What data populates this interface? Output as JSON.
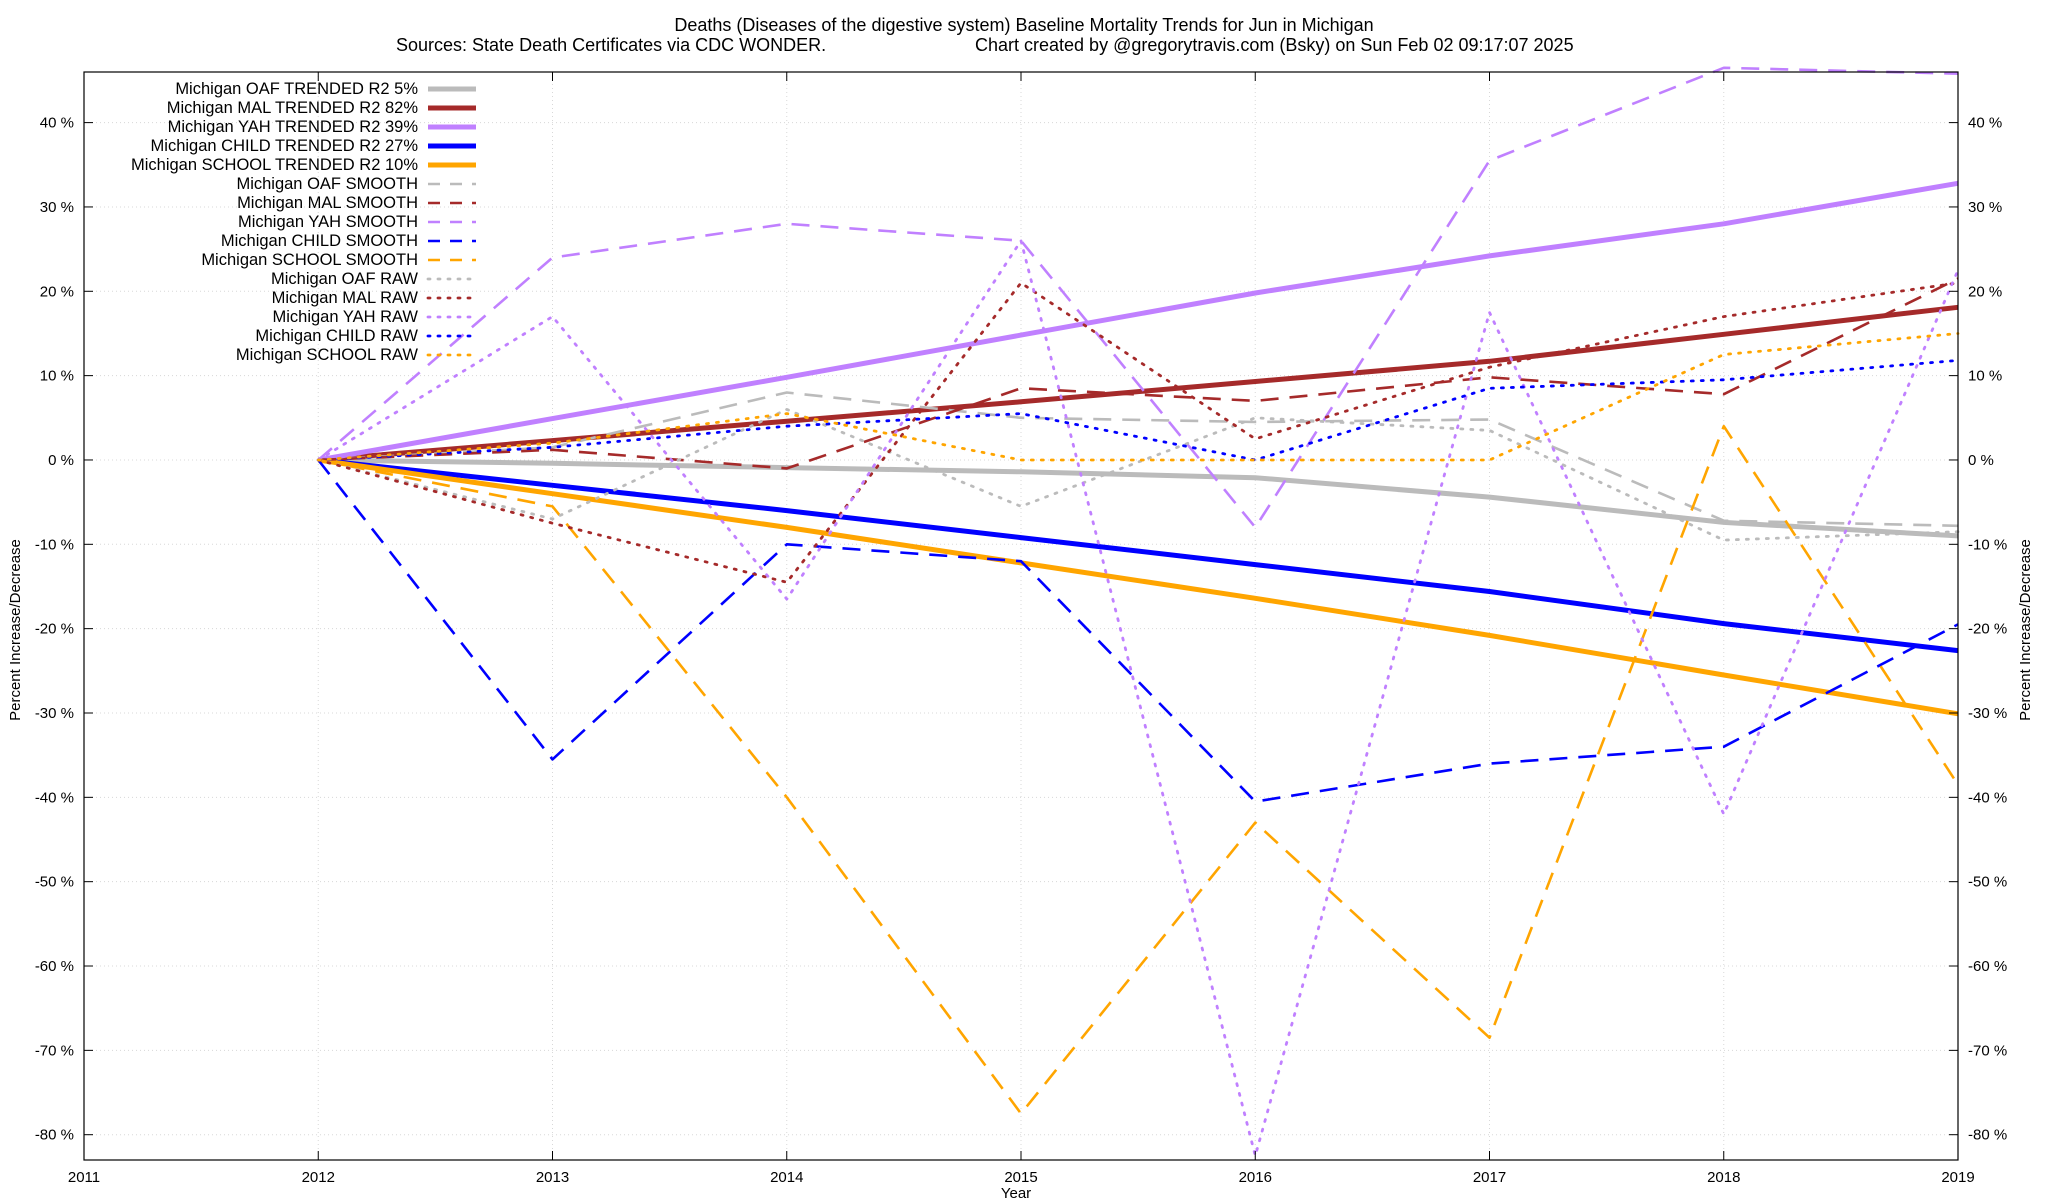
{
  "chart_data": {
    "type": "line",
    "title_line1": "Deaths (Diseases of the digestive system)  Baseline Mortality Trends for Jun in Michigan",
    "title_line2_left": "Sources: State Death Certificates via CDC WONDER.",
    "title_line2_right": "Chart created by @gregorytravis.com (Bsky) on Sun Feb 02 09:17:07 2025",
    "xlabel": "Year",
    "ylabel_left": "Percent Increase/Decrease",
    "ylabel_right": "Percent Increase/Decrease",
    "xlim": [
      2011,
      2019
    ],
    "ylim": [
      -83,
      46
    ],
    "grid": true,
    "legend_position": "top-left",
    "x_ticks": [
      "2011",
      "2012",
      "2013",
      "2014",
      "2015",
      "2016",
      "2017",
      "2018",
      "2019"
    ],
    "y_ticks": [
      "40 %",
      "30 %",
      "20 %",
      "10 %",
      "0 %",
      "-10 %",
      "-20 %",
      "-30 %",
      "-40 %",
      "-50 %",
      "-60 %",
      "-70 %",
      "-80 %"
    ],
    "y_tick_values": [
      40,
      30,
      20,
      10,
      0,
      -10,
      -20,
      -30,
      -40,
      -50,
      -60,
      -70,
      -80
    ],
    "x": [
      2012,
      2013,
      2014,
      2015,
      2016,
      2017,
      2018,
      2019
    ],
    "series": [
      {
        "name": "Michigan OAF TRENDED R2  5%",
        "style": "solid",
        "color": "#bbbbbb",
        "values": [
          0,
          -0.4,
          -0.9,
          -1.4,
          -2.1,
          -4.4,
          -7.4,
          -9.0
        ]
      },
      {
        "name": "Michigan MAL TRENDED R2  82%",
        "style": "solid",
        "color": "#a52a2a",
        "values": [
          0,
          2.3,
          4.6,
          6.9,
          9.3,
          11.7,
          14.9,
          18.1
        ]
      },
      {
        "name": "Michigan YAH TRENDED R2  39%",
        "style": "solid",
        "color": "#c080ff",
        "values": [
          0,
          4.9,
          9.8,
          14.8,
          19.8,
          24.2,
          28.0,
          32.8
        ]
      },
      {
        "name": "Michigan CHILD TRENDED R2  27%",
        "style": "solid",
        "color": "#0000ff",
        "values": [
          0,
          -3.0,
          -6.0,
          -9.2,
          -12.4,
          -15.6,
          -19.4,
          -22.6
        ]
      },
      {
        "name": "Michigan SCHOOL TRENDED R2  10%",
        "style": "solid",
        "color": "#ffa500",
        "values": [
          0,
          -4.0,
          -8.0,
          -12.2,
          -16.4,
          -20.8,
          -25.5,
          -30.1
        ]
      },
      {
        "name": "Michigan OAF SMOOTH",
        "style": "dashed",
        "color": "#bbbbbb",
        "values": [
          0,
          1.5,
          8.0,
          5.0,
          4.5,
          4.8,
          -7.2,
          -7.8
        ]
      },
      {
        "name": "Michigan MAL SMOOTH",
        "style": "dashed",
        "color": "#a52a2a",
        "values": [
          0,
          1.2,
          -1.0,
          8.5,
          7.0,
          9.8,
          7.8,
          21.5
        ]
      },
      {
        "name": "Michigan YAH SMOOTH",
        "style": "dashed",
        "color": "#c080ff",
        "values": [
          0,
          24.0,
          28.0,
          26.0,
          -8.0,
          35.5,
          46.5,
          45.8
        ]
      },
      {
        "name": "Michigan CHILD SMOOTH",
        "style": "dashed",
        "color": "#0000ff",
        "values": [
          0,
          -35.5,
          -10.0,
          -12.0,
          -40.5,
          -36.0,
          -34.0,
          -19.5
        ]
      },
      {
        "name": "Michigan SCHOOL SMOOTH",
        "style": "dashed",
        "color": "#ffa500",
        "values": [
          0,
          -5.5,
          -40.0,
          -77.5,
          -43.0,
          -68.5,
          4.0,
          -38.5
        ]
      },
      {
        "name": "Michigan OAF RAW",
        "style": "dotted",
        "color": "#bbbbbb",
        "values": [
          0,
          -7.0,
          6.0,
          -5.5,
          5.0,
          3.5,
          -9.5,
          -8.5
        ]
      },
      {
        "name": "Michigan MAL RAW",
        "style": "dotted",
        "color": "#a52a2a",
        "values": [
          0,
          -7.5,
          -14.5,
          21.0,
          2.5,
          11.0,
          17.0,
          21.0
        ]
      },
      {
        "name": "Michigan YAH RAW",
        "style": "dotted",
        "color": "#c080ff",
        "values": [
          0,
          17.0,
          -16.5,
          26.0,
          -82.5,
          17.5,
          -42.0,
          22.5
        ]
      },
      {
        "name": "Michigan CHILD RAW",
        "style": "dotted",
        "color": "#0000ff",
        "values": [
          0,
          1.5,
          4.0,
          5.5,
          0.0,
          8.5,
          9.5,
          11.8
        ]
      },
      {
        "name": "Michigan SCHOOL RAW",
        "style": "dotted",
        "color": "#ffa500",
        "values": [
          0,
          2.0,
          5.5,
          0.0,
          0.0,
          0.0,
          12.5,
          15.0
        ]
      }
    ]
  }
}
